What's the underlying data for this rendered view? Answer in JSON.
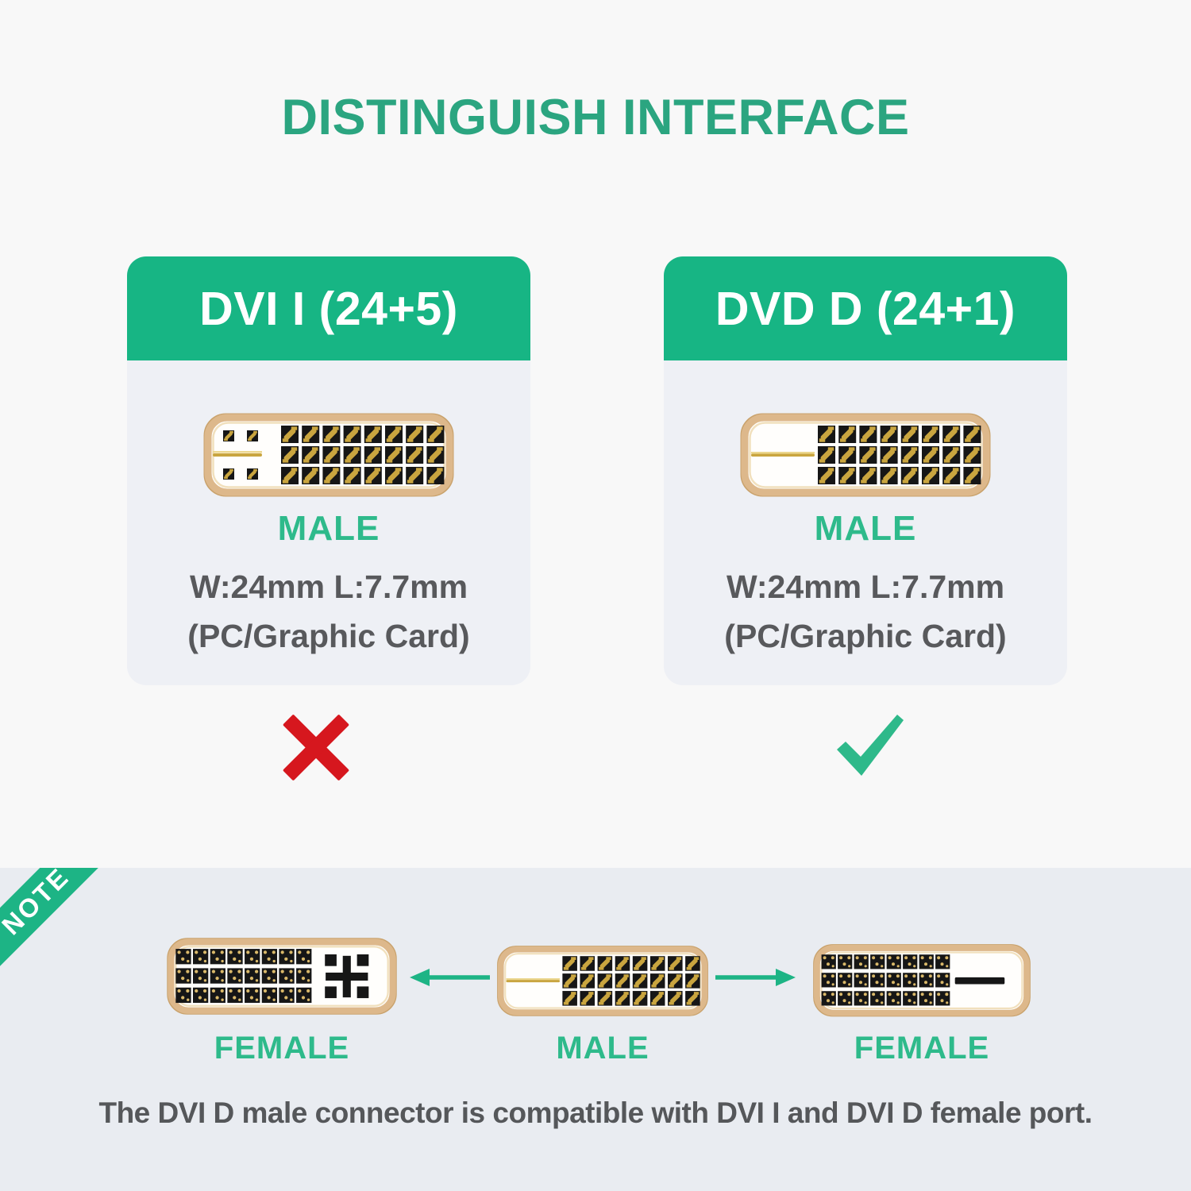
{
  "title": "DISTINGUISH INTERFACE",
  "cards": [
    {
      "header": "DVI I (24+5)",
      "connector": "dvi_i_male",
      "gender_label": "MALE",
      "dimensions": "W:24mm L:7.7mm",
      "usage": "(PC/Graphic Card)",
      "verdict": "incompatible"
    },
    {
      "header": "DVD D (24+1)",
      "connector": "dvi_d_male",
      "gender_label": "MALE",
      "dimensions": "W:24mm L:7.7mm",
      "usage": "(PC/Graphic Card)",
      "verdict": "compatible"
    }
  ],
  "verdict_icons": {
    "incompatible": "red-x-icon",
    "compatible": "green-check-icon"
  },
  "note": {
    "ribbon_label": "NOTE",
    "connectors": [
      {
        "label": "FEMALE",
        "connector": "dvi_i_female"
      },
      {
        "label": "MALE",
        "connector": "dvi_d_male"
      },
      {
        "label": "FEMALE",
        "connector": "dvi_d_female"
      }
    ],
    "caption": "The DVI D male connector is compatible with DVI I and DVI D female port."
  },
  "connector_specs": {
    "dvi_i_male": {
      "gender": "male",
      "pin_rows": 3,
      "pin_cols": 8,
      "analog_feature": "blade_with_4_pins"
    },
    "dvi_d_male": {
      "gender": "male",
      "pin_rows": 3,
      "pin_cols": 8,
      "analog_feature": "blade"
    },
    "dvi_i_female": {
      "gender": "female",
      "pin_rows": 3,
      "pin_cols": 8,
      "analog_feature": "cross_with_4_holes"
    },
    "dvi_d_female": {
      "gender": "female",
      "pin_rows": 3,
      "pin_cols": 8,
      "analog_feature": "flat_slot"
    }
  },
  "colors": {
    "green": "#17b584",
    "title_green": "#2ba580",
    "label_green": "#2eba8b",
    "arrow_green": "#1db485",
    "red": "#d6171e",
    "gold_ring": "#ddb88b",
    "gold_ring_edge": "#c9a26c",
    "gold_ring_highlight": "#f1e0bd",
    "pin_gold": "#c9a53f",
    "pin_gold_light": "#ecd78f",
    "hole_dot_gold": "#d9b869",
    "pin_black": "#161616",
    "text_gray": "#58595c",
    "caption_gray": "#55575a",
    "page_bg": "#f8f8f8",
    "card_bg": "#eef0f5",
    "note_bg": "#e9ecf1"
  }
}
